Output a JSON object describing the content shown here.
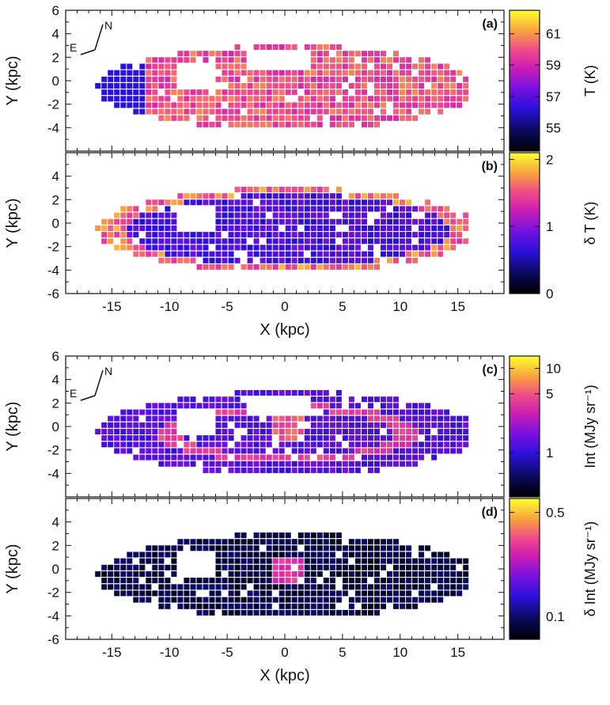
{
  "chart_data": [
    {
      "type": "heatmap",
      "panel": "(a)",
      "ylabel": "Y (kpc)",
      "xlim": [
        -19,
        19
      ],
      "ylim": [
        -6,
        6
      ],
      "yticks": [
        -4,
        -2,
        0,
        2,
        4,
        6
      ],
      "colorbar": {
        "label": "T (K)",
        "ticks": [
          "55",
          "57",
          "59",
          "61"
        ],
        "tick_values": [
          55,
          57,
          59,
          61
        ],
        "range": [
          53.5,
          62.5
        ]
      },
      "compass": {
        "north": "N",
        "east": "E"
      },
      "value_level": 0.75
    },
    {
      "type": "heatmap",
      "panel": "(b)",
      "ylabel": "Y (kpc)",
      "xlabel": "X (kpc)",
      "xlim": [
        -19,
        19
      ],
      "ylim": [
        -6,
        6
      ],
      "yticks": [
        -6,
        -4,
        -2,
        0,
        2,
        4
      ],
      "xticks": [
        "-15",
        "-10",
        "-5",
        "0",
        "5",
        "10",
        "15"
      ],
      "xtick_values": [
        -15,
        -10,
        -5,
        0,
        5,
        10,
        15
      ],
      "colorbar": {
        "label": "δ T (K)",
        "ticks": [
          "0",
          "1",
          "2"
        ],
        "tick_values": [
          0,
          1,
          2
        ],
        "range": [
          0,
          2.1
        ]
      },
      "value_level": 0.3
    },
    {
      "type": "heatmap",
      "panel": "(c)",
      "ylabel": "Y (kpc)",
      "xlim": [
        -19,
        19
      ],
      "ylim": [
        -6,
        6
      ],
      "yticks": [
        -4,
        -2,
        0,
        2,
        4,
        6
      ],
      "colorbar": {
        "label": "Int (MJy sr⁻¹)",
        "ticks": [
          "1",
          "5",
          "10"
        ],
        "tick_values": [
          1,
          5,
          10
        ],
        "range": [
          0.3,
          14
        ],
        "scale": "log"
      },
      "compass": {
        "north": "N",
        "east": "E"
      },
      "value_level": 0.45
    },
    {
      "type": "heatmap",
      "panel": "(d)",
      "ylabel": "Y (kpc)",
      "xlabel": "X (kpc)",
      "xlim": [
        -19,
        19
      ],
      "ylim": [
        -6,
        6
      ],
      "yticks": [
        -6,
        -4,
        -2,
        0,
        2,
        4
      ],
      "xticks": [
        "-15",
        "-10",
        "-5",
        "0",
        "5",
        "10",
        "15"
      ],
      "xtick_values": [
        -15,
        -10,
        -5,
        0,
        5,
        10,
        15
      ],
      "colorbar": {
        "label": "δ Int (MJy sr⁻¹)",
        "ticks": [
          "0.1",
          "0.5"
        ],
        "tick_values": [
          0.1,
          0.5
        ],
        "range": [
          0.07,
          0.62
        ],
        "scale": "log"
      },
      "value_level": 0.15
    }
  ]
}
